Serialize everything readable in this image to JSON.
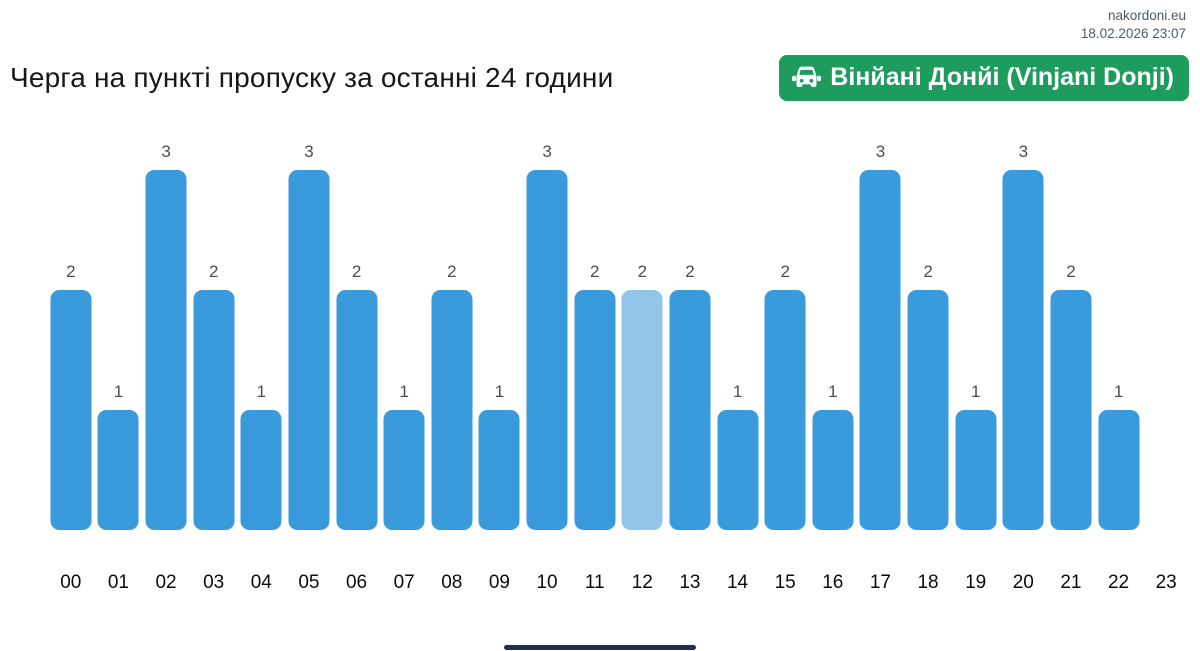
{
  "meta": {
    "site": "nakordoni.eu",
    "datetime": "18.02.2026 23:07"
  },
  "title": "Черга на пункті пропуску за останні 24 години",
  "badge": {
    "label": "Вінйані Донйі (Vinjani Donji)",
    "icon": "car-front-icon",
    "bg_color": "#1e9c5e",
    "text_color": "#ffffff"
  },
  "chart_data": {
    "type": "bar",
    "title": "Черга на пункті пропуску за останні 24 години",
    "categories": [
      "00",
      "01",
      "02",
      "03",
      "04",
      "05",
      "06",
      "07",
      "08",
      "09",
      "10",
      "11",
      "12",
      "13",
      "14",
      "15",
      "16",
      "17",
      "18",
      "19",
      "20",
      "21",
      "22",
      "23"
    ],
    "values": [
      2,
      1,
      3,
      2,
      1,
      3,
      2,
      1,
      2,
      1,
      3,
      2,
      2,
      2,
      1,
      2,
      1,
      3,
      2,
      1,
      3,
      2,
      1,
      0
    ],
    "highlighted_index": 12,
    "xlabel": "",
    "ylabel": "",
    "ylim": [
      0,
      3
    ],
    "grid": false,
    "legend": false,
    "value_labels": "above each bar, hidden when 0",
    "bar_color": "#3a9bdc",
    "highlight_bar_color": "#92c5ea",
    "value_label_color": "#4d4d4d",
    "axis_label_color": "#0c0c0c"
  },
  "footer": {
    "home_indicator": true,
    "home_indicator_color": "#20304f"
  }
}
